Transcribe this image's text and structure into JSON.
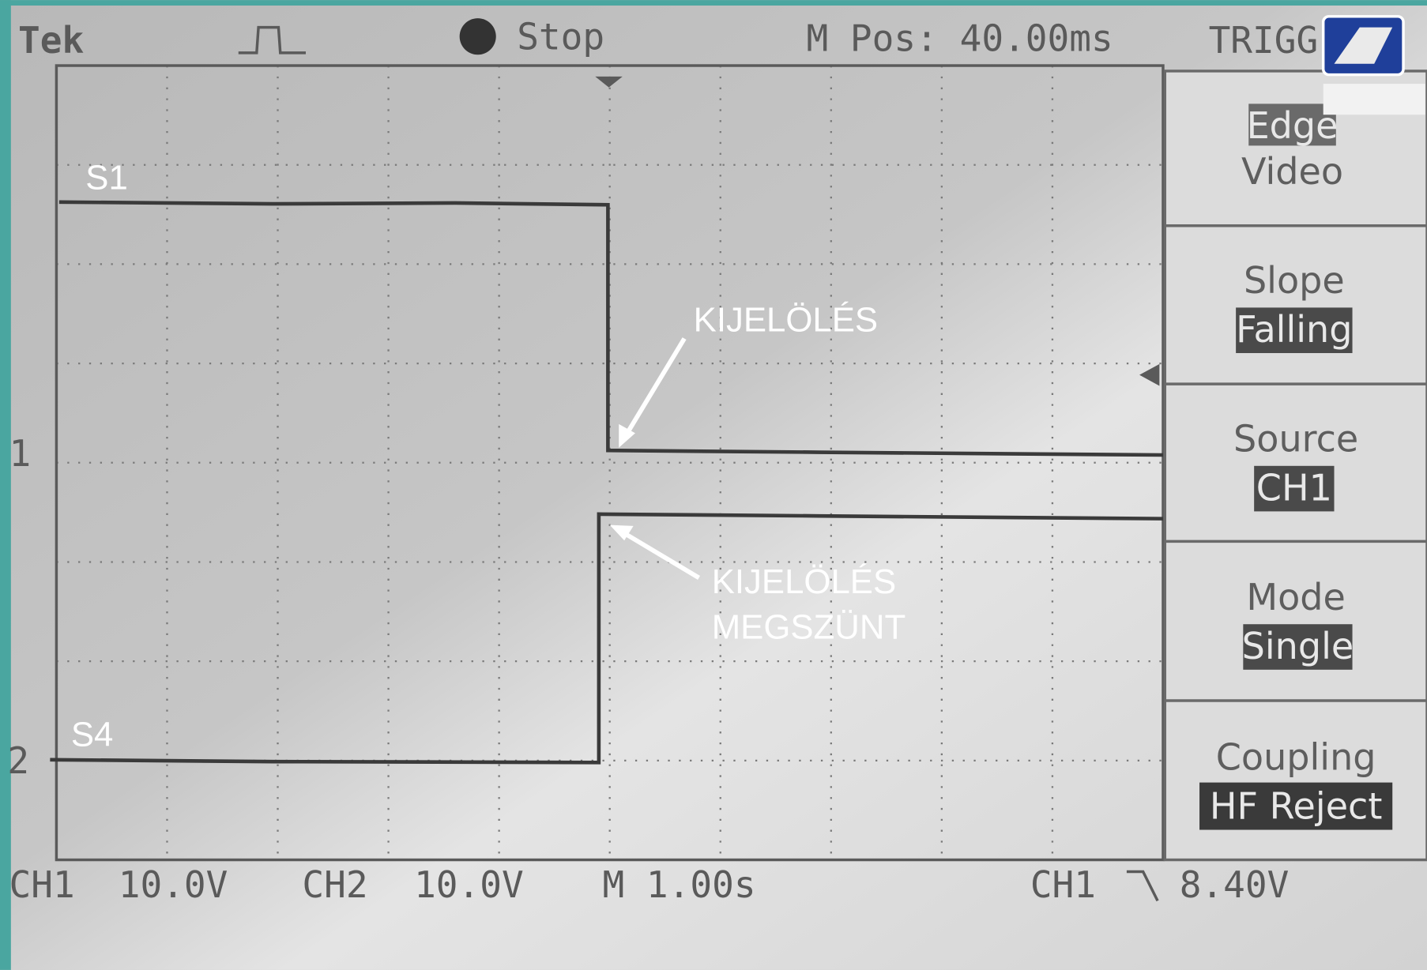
{
  "header": {
    "brand": "Tek",
    "status": "Stop",
    "position": "M Pos: 40.00ms",
    "menu": "TRIGG"
  },
  "menu": [
    {
      "options": [
        "Edge",
        "Video"
      ]
    },
    {
      "title": "Slope",
      "value": "Falling"
    },
    {
      "title": "Source",
      "value": "CH1"
    },
    {
      "title": "Mode",
      "value": "Single"
    },
    {
      "title": "Coupling",
      "value": "HF Reject"
    }
  ],
  "traces": {
    "labels": [
      "S1",
      "S4"
    ],
    "markers": [
      "1",
      "2"
    ]
  },
  "annotations": [
    {
      "lines": [
        "KIJELÖLÉS"
      ]
    },
    {
      "lines": [
        "KIJELÖLÉS",
        "MEGSZÜNT"
      ]
    }
  ],
  "footer": {
    "ch1": "CH1",
    "ch1_scale": "10.0V",
    "ch2": "CH2",
    "ch2_scale": "10.0V",
    "timebase": "M 1.00s",
    "trigger_source": "CH1",
    "trigger_level": "8.40V"
  }
}
